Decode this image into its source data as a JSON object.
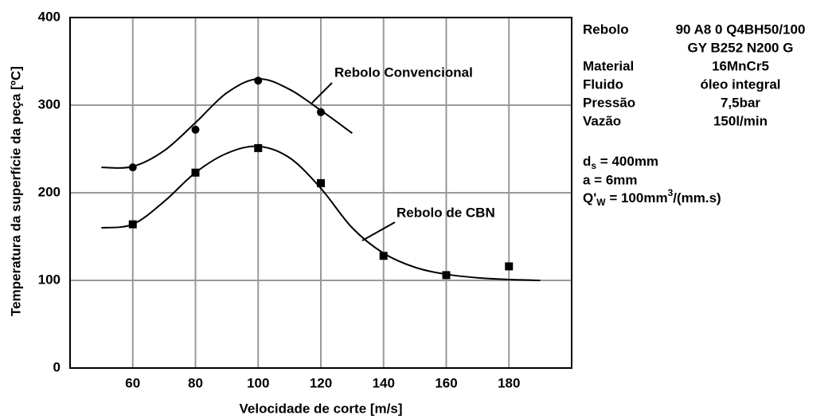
{
  "chart_data": {
    "type": "scatter",
    "x_label": "Velocidade de corte [m/s]",
    "y_label": "Temperatura da superfície da peça [ºC]",
    "xlim": [
      40,
      200
    ],
    "ylim": [
      0,
      400
    ],
    "xticks": [
      60,
      80,
      100,
      120,
      140,
      160,
      180
    ],
    "yticks": [
      0,
      100,
      200,
      300,
      400
    ],
    "grid": true,
    "series": [
      {
        "name": "Rebolo Convencional",
        "color": "#000000",
        "marker": "circle",
        "x": [
          60,
          80,
          100,
          120
        ],
        "values": [
          229,
          272,
          328,
          292
        ],
        "curve_x": [
          50,
          60,
          70,
          80,
          90,
          100,
          110,
          120,
          130
        ],
        "curve_values": [
          229,
          230,
          248,
          280,
          314,
          330,
          318,
          294,
          268
        ]
      },
      {
        "name": "Rebolo de CBN",
        "color": "#000000",
        "marker": "square",
        "x": [
          60,
          80,
          100,
          120,
          140,
          160,
          180
        ],
        "values": [
          164,
          223,
          251,
          211,
          128,
          106,
          116
        ],
        "curve_x": [
          50,
          60,
          70,
          80,
          90,
          100,
          110,
          120,
          130,
          140,
          150,
          160,
          170,
          180,
          190
        ],
        "curve_values": [
          160,
          164,
          190,
          223,
          245,
          253,
          240,
          205,
          160,
          131,
          115,
          107,
          103,
          101,
          100
        ]
      }
    ],
    "info": {
      "rows": [
        {
          "label": "Rebolo",
          "value": "90 A8 0 Q4BH50/100"
        },
        {
          "label": "",
          "value": "GY B252 N200 G"
        },
        {
          "label": "Material",
          "value": "16MnCr5"
        },
        {
          "label": "Fluido",
          "value": "óleo integral"
        },
        {
          "label": "Pressão",
          "value": "7,5bar"
        },
        {
          "label": "Vazão",
          "value": "150l/min"
        }
      ],
      "ds": {
        "symbol": "d",
        "sub": "s",
        "rest": " = 400mm"
      },
      "a": "a = 6mm",
      "q": {
        "symbol": "Q'",
        "sub": "W",
        "rest": " = 100mm",
        "sup": "3",
        "tail": "/(mm.s)"
      }
    }
  }
}
